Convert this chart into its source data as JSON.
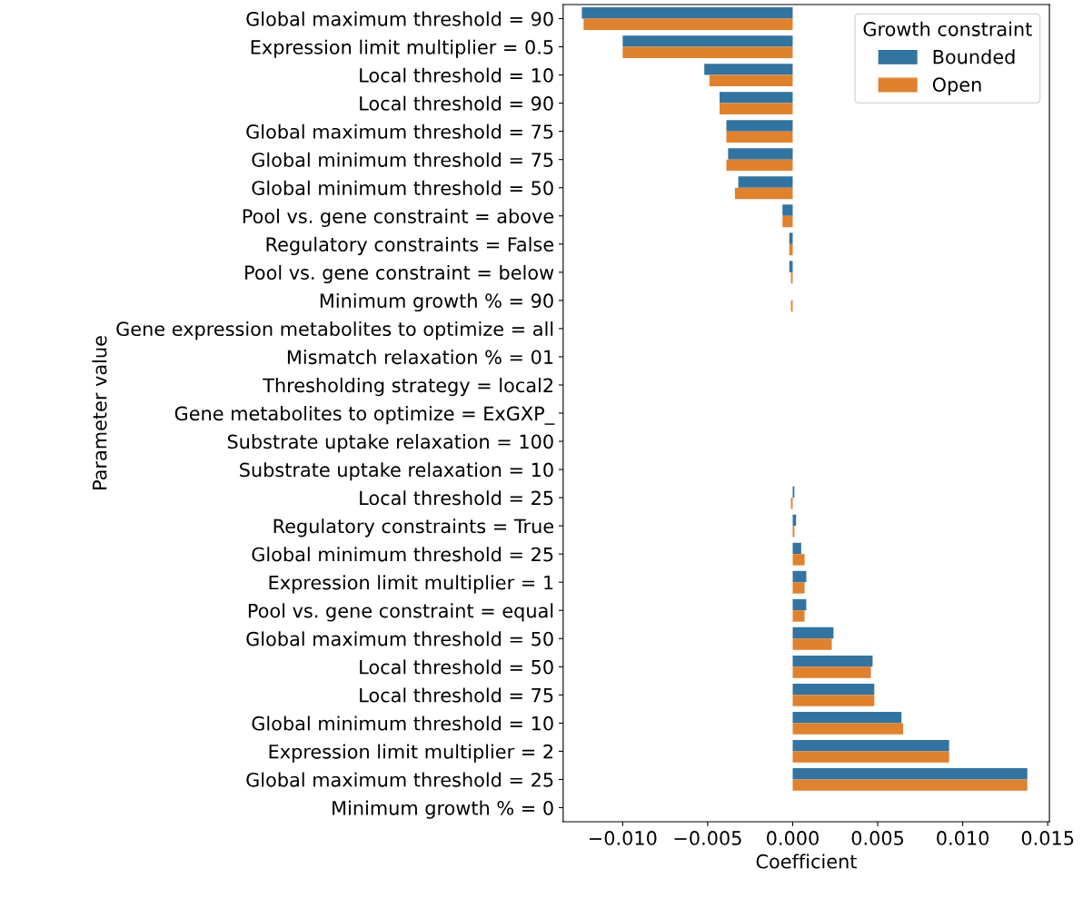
{
  "chart_data": {
    "type": "bar",
    "orientation": "horizontal",
    "xlabel": "Coefficient",
    "ylabel": "Parameter value",
    "legend_title": "Growth constraint",
    "legend": "top right",
    "grid": false,
    "categories": [
      "Global maximum threshold = 90",
      "Expression limit multiplier = 0.5",
      "Local threshold = 10",
      "Local threshold = 90",
      "Global maximum threshold = 75",
      "Global minimum threshold = 75",
      "Global minimum threshold = 50",
      "Pool vs. gene constraint = above",
      "Regulatory constraints = False",
      "Pool vs. gene constraint = below",
      "Minimum growth % = 90",
      "Gene expression metabolites to optimize = all",
      "Mismatch relaxation % = 01",
      "Thresholding strategy = local2",
      "Gene metabolites to optimize = ExGXP_",
      "Substrate uptake relaxation = 100",
      "Substrate uptake relaxation = 10",
      "Local threshold = 25",
      "Regulatory constraints = True",
      "Global minimum threshold = 25",
      "Expression limit multiplier = 1",
      "Pool vs. gene constraint = equal",
      "Global maximum threshold = 50",
      "Local threshold = 50",
      "Local threshold = 75",
      "Global minimum threshold = 10",
      "Expression limit multiplier = 2",
      "Global maximum threshold = 25",
      "Minimum growth % = 0"
    ],
    "series": [
      {
        "name": "Bounded",
        "color": "#3274a1",
        "values": [
          -0.0124,
          -0.01,
          -0.0052,
          -0.0043,
          -0.0039,
          -0.0038,
          -0.0032,
          -0.0006,
          -0.0002,
          -0.0002,
          0,
          0,
          0,
          0,
          0,
          0,
          0,
          0.0001,
          0.0002,
          0.0005,
          0.0008,
          0.0008,
          0.0024,
          0.0047,
          0.0048,
          0.0064,
          0.0092,
          0.0138,
          0
        ]
      },
      {
        "name": "Open",
        "color": "#e1812c",
        "values": [
          -0.0123,
          -0.01,
          -0.0049,
          -0.0043,
          -0.0039,
          -0.0039,
          -0.0034,
          -0.0006,
          -0.0002,
          -0.0001,
          -0.0001,
          0,
          0,
          0,
          0,
          0,
          0,
          -0.0001,
          0.0001,
          0.0007,
          0.0007,
          0.0007,
          0.0023,
          0.0046,
          0.0048,
          0.0065,
          0.0092,
          0.0138,
          0
        ]
      }
    ],
    "xlim": [
      -0.0135,
      0.0151
    ],
    "xticks": [
      {
        "value": -0.01,
        "label": "−0.010"
      },
      {
        "value": -0.005,
        "label": "−0.005"
      },
      {
        "value": 0,
        "label": "0.000"
      },
      {
        "value": 0.005,
        "label": "0.005"
      },
      {
        "value": 0.01,
        "label": "0.010"
      },
      {
        "value": 0.015,
        "label": "0.015"
      }
    ]
  }
}
